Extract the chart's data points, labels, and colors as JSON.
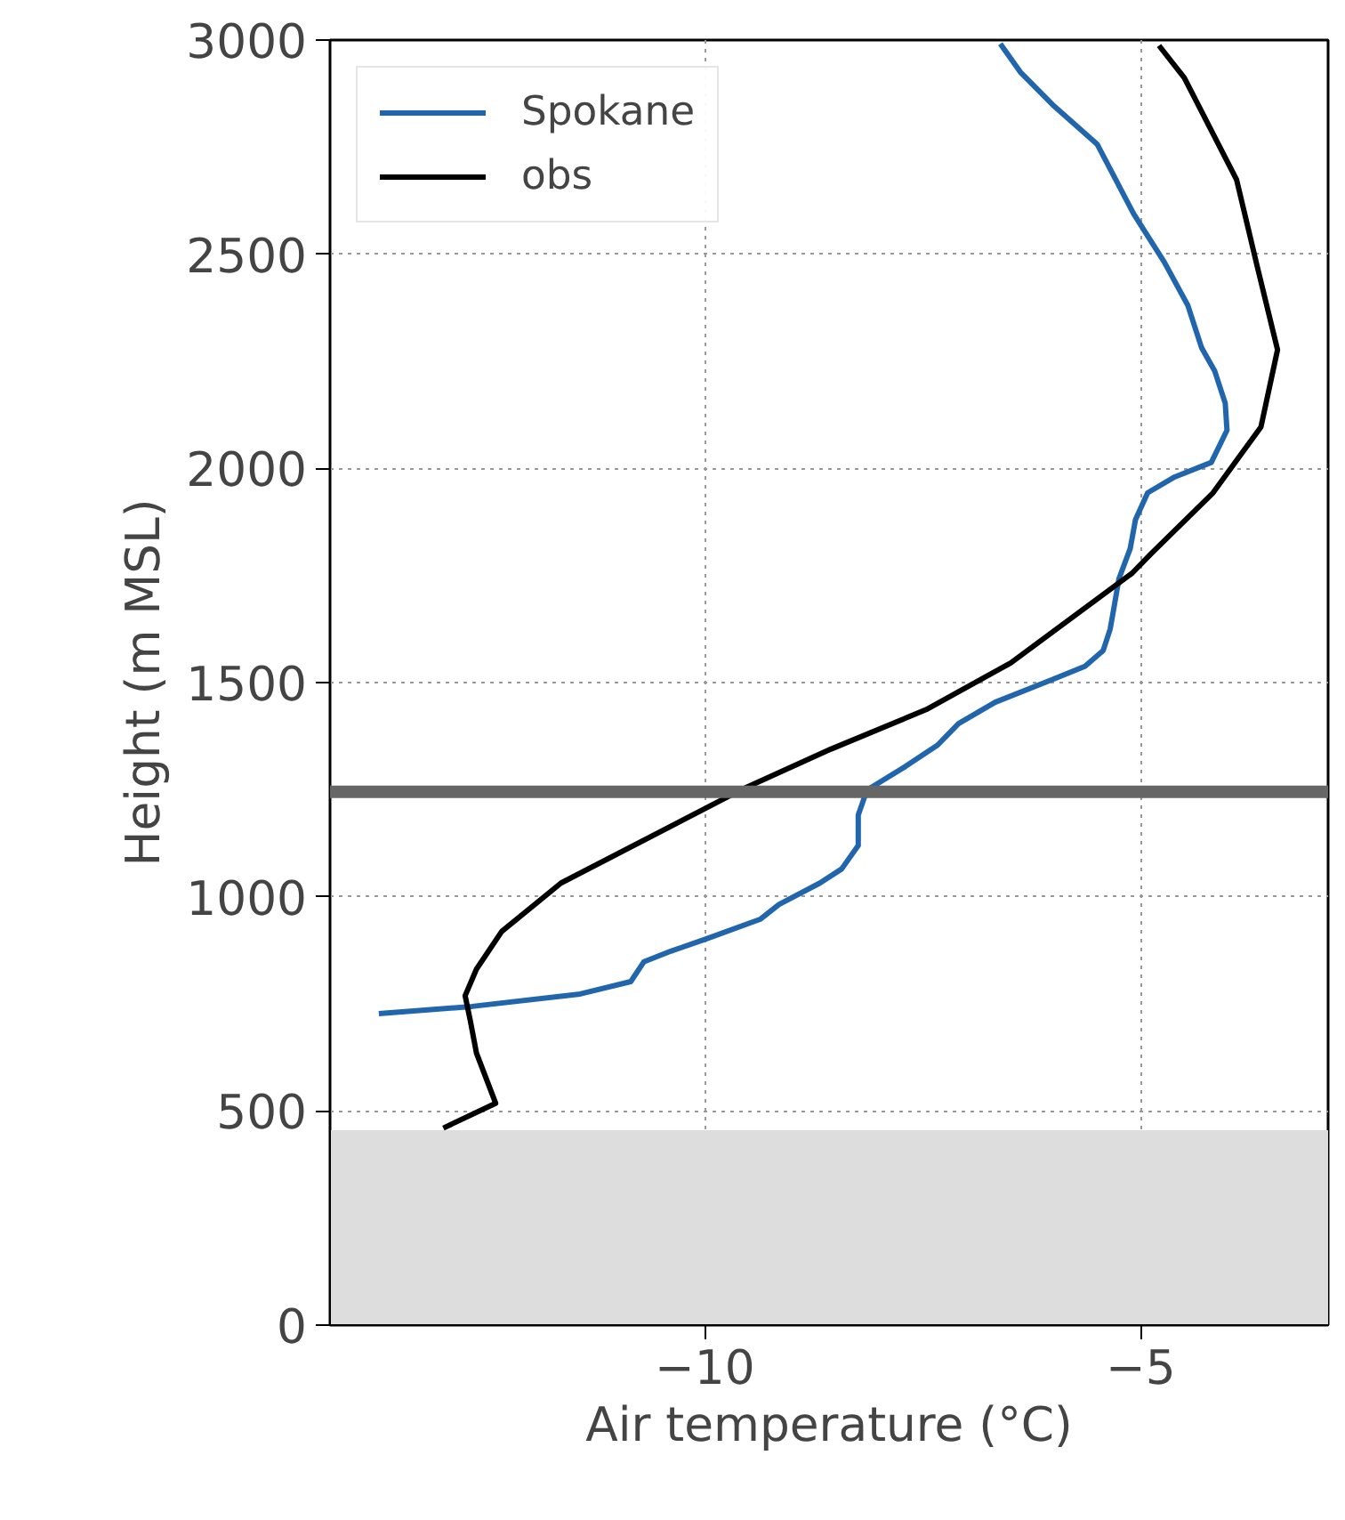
{
  "chart_data": {
    "type": "line",
    "xlabel": "Air temperature (°C)",
    "ylabel": "Height (m MSL)",
    "series": [
      {
        "name": "Spokane",
        "color": "#2166ac",
        "x": [
          -13.74,
          -12.67,
          -11.43,
          -10.85,
          -10.7,
          -10.39,
          -9.98,
          -9.36,
          -9.15,
          -8.68,
          -8.43,
          -8.24,
          -8.24,
          -8.14,
          -7.7,
          -7.33,
          -7.09,
          -6.67,
          -6.05,
          -5.64,
          -5.43,
          -5.35,
          -5.31,
          -5.25,
          -5.12,
          -5.06,
          -4.92,
          -4.61,
          -4.19,
          -4.01,
          -4.03,
          -4.15,
          -4.3,
          -4.46,
          -4.73,
          -5.08,
          -5.5,
          -6.01,
          -6.38,
          -6.61
        ],
        "values": [
          727,
          744,
          773,
          802,
          848,
          873,
          902,
          948,
          982,
          1032,
          1065,
          1120,
          1191,
          1249,
          1304,
          1354,
          1404,
          1454,
          1504,
          1538,
          1575,
          1625,
          1671,
          1742,
          1813,
          1880,
          1943,
          1980,
          2014,
          2089,
          2152,
          2227,
          2281,
          2381,
          2482,
          2594,
          2757,
          2849,
          2925,
          2991
        ]
      },
      {
        "name": "obs",
        "color": "#000000",
        "x": [
          -13.0,
          -12.4,
          -12.62,
          -12.69,
          -12.75,
          -12.62,
          -12.33,
          -11.65,
          -9.59,
          -8.55,
          -7.46,
          -6.49,
          -5.1,
          -4.88,
          -4.17,
          -3.62,
          -3.43,
          -3.66,
          -3.9,
          -4.5,
          -4.79
        ],
        "values": [
          460,
          518,
          635,
          710,
          769,
          831,
          919,
          1032,
          1249,
          1345,
          1437,
          1546,
          1755,
          1801,
          1943,
          2097,
          2277,
          2469,
          2674,
          2912,
          2987
        ]
      }
    ],
    "xlim": [
      -14.3,
      -2.85
    ],
    "ylim": [
      0,
      3000
    ],
    "xticks": [
      {
        "value": -10,
        "label": "−10"
      },
      {
        "value": -5,
        "label": "−5"
      }
    ],
    "yticks": [
      0,
      500,
      1000,
      1500,
      2000,
      2500,
      3000
    ],
    "ref_lines": [
      {
        "axis": "y",
        "value": 1245,
        "color": "#666666"
      }
    ],
    "bands": [
      {
        "axis": "y",
        "from": 0,
        "to": 455,
        "color": "#dddddd"
      }
    ],
    "grid": true,
    "legend": "top left",
    "line_style": "solid"
  }
}
